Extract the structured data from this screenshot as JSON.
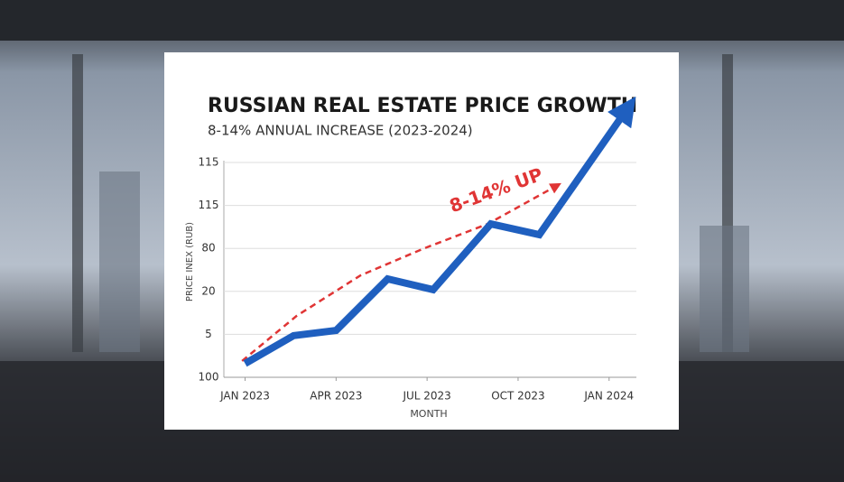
{
  "chart_data": {
    "type": "line",
    "title": "RUSSIAN REAL ESTATE PRICE GROWTH",
    "subtitle": "8-14% ANNUAL INCREASE (2023-2024)",
    "x_label": "MONTH",
    "y_label": "PRICE INEX (RUB)",
    "x": [
      0,
      1.6,
      3,
      4.7,
      6.2,
      8.1,
      9.7,
      12.5
    ],
    "values": [
      0.32,
      0.97,
      1.09,
      2.29,
      2.04,
      3.57,
      3.32,
      6.15
    ],
    "color": "#1f5fbf",
    "trend": {
      "x": [
        -0.1,
        1.7,
        3.8,
        5.9,
        8.0,
        10.2
      ],
      "values": [
        0.38,
        1.43,
        2.37,
        3.0,
        3.57,
        4.43
      ],
      "color": "#e03535"
    },
    "annotation": "8-14% UP",
    "xlim": [
      -0.7,
      12.9
    ],
    "xticks": [
      {
        "value": 0,
        "label": "JAN 2023"
      },
      {
        "value": 3,
        "label": "APR 2023"
      },
      {
        "value": 6,
        "label": "JUL 2023"
      },
      {
        "value": 9,
        "label": "OCT 2023"
      },
      {
        "value": 12,
        "label": "JAN 2024"
      }
    ],
    "ylim": [
      0,
      5
    ],
    "yticks": [
      {
        "value": 0,
        "label": "100"
      },
      {
        "value": 1,
        "label": "5"
      },
      {
        "value": 2,
        "label": "20"
      },
      {
        "value": 3,
        "label": "80"
      },
      {
        "value": 4,
        "label": "115"
      },
      {
        "value": 5,
        "label": "115"
      }
    ],
    "grid": true
  }
}
